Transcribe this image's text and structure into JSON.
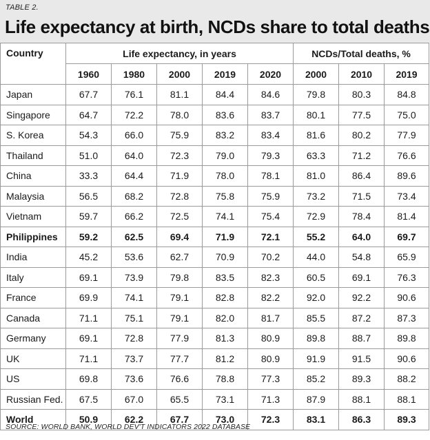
{
  "table_label": "TABLE 2.",
  "title": "Life expectancy at birth, NCDs share to total deaths",
  "header": {
    "country": "Country",
    "group_life": "Life expectancy, in years",
    "group_ncd": "NCDs/Total deaths, %",
    "years": [
      "1960",
      "1980",
      "2000",
      "2019",
      "2020",
      "2000",
      "2010",
      "2019"
    ]
  },
  "rows": [
    {
      "country": "Japan",
      "values": [
        "67.7",
        "76.1",
        "81.1",
        "84.4",
        "84.6",
        "79.8",
        "80.3",
        "84.8"
      ]
    },
    {
      "country": "Singapore",
      "values": [
        "64.7",
        "72.2",
        "78.0",
        "83.6",
        "83.7",
        "80.1",
        "77.5",
        "75.0"
      ]
    },
    {
      "country": "S. Korea",
      "values": [
        "54.3",
        "66.0",
        "75.9",
        "83.2",
        "83.4",
        "81.6",
        "80.2",
        "77.9"
      ]
    },
    {
      "country": "Thailand",
      "values": [
        "51.0",
        "64.0",
        "72.3",
        "79.0",
        "79.3",
        "63.3",
        "71.2",
        "76.6"
      ]
    },
    {
      "country": "China",
      "values": [
        "33.3",
        "64.4",
        "71.9",
        "78.0",
        "78.1",
        "81.0",
        "86.4",
        "89.6"
      ]
    },
    {
      "country": "Malaysia",
      "values": [
        "56.5",
        "68.2",
        "72.8",
        "75.8",
        "75.9",
        "73.2",
        "71.5",
        "73.4"
      ]
    },
    {
      "country": "Vietnam",
      "values": [
        "59.7",
        "66.2",
        "72.5",
        "74.1",
        "75.4",
        "72.9",
        "78.4",
        "81.4"
      ]
    },
    {
      "country": "Philippines",
      "values": [
        "59.2",
        "62.5",
        "69.4",
        "71.9",
        "72.1",
        "55.2",
        "64.0",
        "69.7"
      ],
      "bold": true
    },
    {
      "country": "India",
      "values": [
        "45.2",
        "53.6",
        "62.7",
        "70.9",
        "70.2",
        "44.0",
        "54.8",
        "65.9"
      ]
    },
    {
      "country": "Italy",
      "values": [
        "69.1",
        "73.9",
        "79.8",
        "83.5",
        "82.3",
        "60.5",
        "69.1",
        "76.3"
      ]
    },
    {
      "country": "France",
      "values": [
        "69.9",
        "74.1",
        "79.1",
        "82.8",
        "82.2",
        "92.0",
        "92.2",
        "90.6"
      ]
    },
    {
      "country": "Canada",
      "values": [
        "71.1",
        "75.1",
        "79.1",
        "82.0",
        "81.7",
        "85.5",
        "87.2",
        "87.3"
      ]
    },
    {
      "country": "Germany",
      "values": [
        "69.1",
        "72.8",
        "77.9",
        "81.3",
        "80.9",
        "89.8",
        "88.7",
        "89.8"
      ]
    },
    {
      "country": "UK",
      "values": [
        "71.1",
        "73.7",
        "77.7",
        "81.2",
        "80.9",
        "91.9",
        "91.5",
        "90.6"
      ]
    },
    {
      "country": "US",
      "values": [
        "69.8",
        "73.6",
        "76.6",
        "78.8",
        "77.3",
        "85.2",
        "89.3",
        "88.2"
      ]
    },
    {
      "country": "Russian Fed.",
      "values": [
        "67.5",
        "67.0",
        "65.5",
        "73.1",
        "71.3",
        "87.9",
        "88.1",
        "88.1"
      ]
    },
    {
      "country": "World",
      "values": [
        "50.9",
        "62.2",
        "67.7",
        "73.0",
        "72.3",
        "83.1",
        "86.3",
        "89.3"
      ],
      "bold": true
    }
  ],
  "source": "SOURCE: WORLD BANK, WORLD DEV'T INDICATORS 2022 DATABASE"
}
